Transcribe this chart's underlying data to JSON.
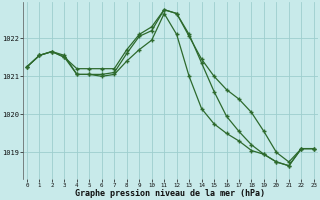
{
  "background_color": "#c8eaea",
  "grid_color": "#9ecece",
  "line_color": "#2d6a2d",
  "x": [
    0,
    1,
    2,
    3,
    4,
    5,
    6,
    7,
    8,
    9,
    10,
    11,
    12,
    13,
    14,
    15,
    16,
    17,
    18,
    19,
    20,
    21,
    22,
    23
  ],
  "series1": [
    1021.25,
    1021.55,
    1021.65,
    1021.55,
    1021.05,
    1021.05,
    1021.05,
    1021.1,
    1021.6,
    1022.05,
    1022.2,
    1022.75,
    1022.65,
    1022.1,
    1021.35,
    1020.6,
    1019.95,
    1019.55,
    1019.2,
    1018.95,
    1018.75,
    1018.65,
    1019.1,
    1019.1
  ],
  "series2": [
    1021.25,
    1021.55,
    1021.65,
    1021.5,
    1021.05,
    1021.05,
    1021.0,
    1021.05,
    1021.4,
    1021.7,
    1021.95,
    1022.65,
    1022.1,
    1021.0,
    1020.15,
    1019.75,
    1019.5,
    1019.3,
    1019.05,
    1018.95,
    1018.75,
    1018.65,
    1019.1,
    1019.1
  ],
  "series3": [
    1021.25,
    1021.55,
    1021.65,
    1021.5,
    1021.2,
    1021.2,
    1021.2,
    1021.2,
    1021.7,
    1022.1,
    1022.3,
    1022.75,
    1022.65,
    1022.05,
    1021.45,
    1021.0,
    1020.65,
    1020.4,
    1020.05,
    1019.55,
    1019.0,
    1018.75,
    1019.1,
    1019.1
  ],
  "ylabel_ticks": [
    1019,
    1020,
    1021,
    1022
  ],
  "ylim": [
    1018.3,
    1022.95
  ],
  "xlim": [
    -0.3,
    23.3
  ],
  "xlabel": "Graphe pression niveau de la mer (hPa)",
  "xticks": [
    0,
    1,
    2,
    3,
    4,
    5,
    6,
    7,
    8,
    9,
    10,
    11,
    12,
    13,
    14,
    15,
    16,
    17,
    18,
    19,
    20,
    21,
    22,
    23
  ]
}
